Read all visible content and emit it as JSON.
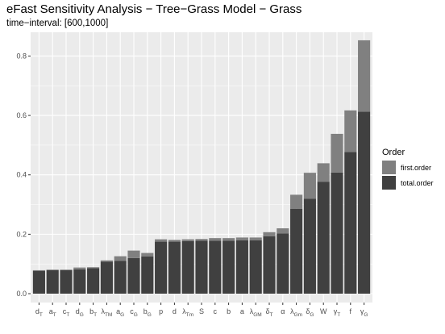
{
  "chart_data": {
    "type": "bar",
    "title": "eFast Sensitivity Analysis − Tree−Grass Model − Grass",
    "subtitle": "time−interval: [600,1000]",
    "xlabel": "",
    "ylabel": "",
    "ylim": [
      0,
      0.88
    ],
    "yticks": [
      0.0,
      0.2,
      0.4,
      0.6,
      0.8
    ],
    "ytick_labels": [
      "0.0",
      "0.2",
      "0.4",
      "0.6",
      "0.8"
    ],
    "grid": true,
    "legend_position": "right",
    "legend_title": "Order",
    "stacked": true,
    "colors": {
      "first.order": "#808080",
      "total.order": "#404040",
      "panel": "#ebebeb",
      "grid": "#ffffff"
    },
    "categories": [
      {
        "base": "d",
        "sub": "T"
      },
      {
        "base": "a",
        "sub": "T"
      },
      {
        "base": "c",
        "sub": "T"
      },
      {
        "base": "d",
        "sub": "G"
      },
      {
        "base": "b",
        "sub": "T"
      },
      {
        "base": "λ",
        "sub": "TM"
      },
      {
        "base": "a",
        "sub": "G"
      },
      {
        "base": "c",
        "sub": "G"
      },
      {
        "base": "b",
        "sub": "G"
      },
      {
        "base": "p",
        "sub": ""
      },
      {
        "base": "d",
        "sub": ""
      },
      {
        "base": "λ",
        "sub": "Tm"
      },
      {
        "base": "S",
        "sub": ""
      },
      {
        "base": "c",
        "sub": ""
      },
      {
        "base": "b",
        "sub": ""
      },
      {
        "base": "a",
        "sub": ""
      },
      {
        "base": "λ",
        "sub": "GM"
      },
      {
        "base": "δ",
        "sub": "T"
      },
      {
        "base": "α",
        "sub": ""
      },
      {
        "base": "λ",
        "sub": "Gm"
      },
      {
        "base": "δ",
        "sub": "G"
      },
      {
        "base": "W",
        "sub": ""
      },
      {
        "base": "γ",
        "sub": "T"
      },
      {
        "base": "f",
        "sub": ""
      },
      {
        "base": "γ",
        "sub": "G"
      }
    ],
    "series": [
      {
        "name": "first.order",
        "values": [
          0.002,
          0.002,
          0.002,
          0.006,
          0.003,
          0.004,
          0.016,
          0.025,
          0.012,
          0.008,
          0.006,
          0.006,
          0.006,
          0.009,
          0.009,
          0.009,
          0.009,
          0.014,
          0.017,
          0.047,
          0.087,
          0.062,
          0.13,
          0.14,
          0.24
        ]
      },
      {
        "name": "total.order",
        "values": [
          0.077,
          0.079,
          0.079,
          0.082,
          0.086,
          0.108,
          0.11,
          0.12,
          0.125,
          0.175,
          0.175,
          0.177,
          0.178,
          0.178,
          0.178,
          0.18,
          0.18,
          0.193,
          0.203,
          0.286,
          0.32,
          0.377,
          0.408,
          0.477,
          0.613
        ]
      }
    ]
  }
}
